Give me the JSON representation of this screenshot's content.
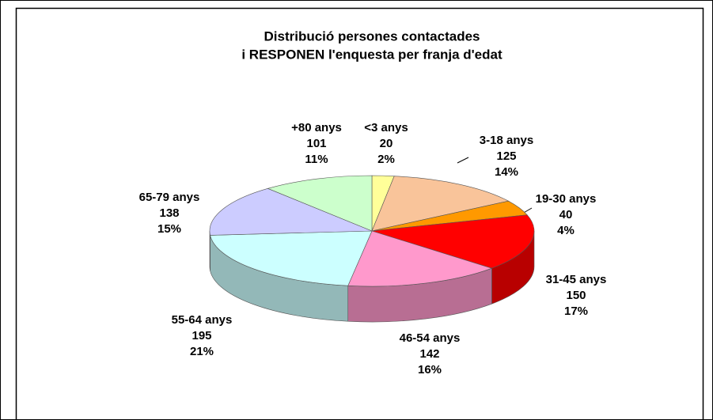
{
  "chart_data": {
    "type": "pie",
    "title": [
      "Distribució persones contactades",
      "i RESPONEN l'enquesta per franja d'edat"
    ],
    "categories": [
      "<3 anys",
      "3-18 anys",
      "19-30 anys",
      "31-45 anys",
      "46-54 anys",
      "55-64 anys",
      "65-79 anys",
      "+80 anys"
    ],
    "values": [
      20,
      125,
      40,
      150,
      142,
      195,
      138,
      101
    ],
    "percent_labels": [
      "2%",
      "14%",
      "4%",
      "17%",
      "16%",
      "21%",
      "15%",
      "11%"
    ],
    "colors": [
      "#ffff99",
      "#f9c49a",
      "#ff9900",
      "#ff0000",
      "#ff99cc",
      "#ccffff",
      "#ccccff",
      "#ccffcc"
    ]
  }
}
